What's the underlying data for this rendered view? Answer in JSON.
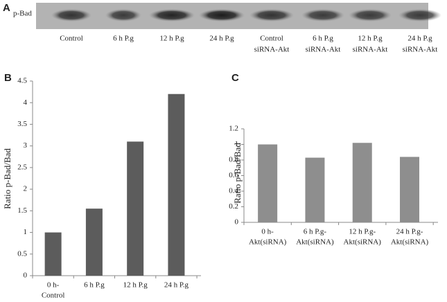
{
  "panel_a": {
    "label": "A",
    "row_label": "p-Bad",
    "lanes": [
      [
        "Control"
      ],
      [
        "6 h P.g"
      ],
      [
        "12 h P.g"
      ],
      [
        "24 h P.g"
      ],
      [
        "Control",
        "siRNA-Akt"
      ],
      [
        "6 h P.g",
        "siRNA-Akt"
      ],
      [
        "12 h P.g",
        "siRNA-Akt"
      ],
      [
        "24 h P.g",
        "siRNA-Akt"
      ]
    ]
  },
  "chart_data": [
    {
      "type": "bar",
      "panel_label": "B",
      "y_label": "Ratio p-Bad/Bad",
      "categories": [
        [
          "0 h-",
          "Control"
        ],
        [
          "6 h P.g"
        ],
        [
          "12 h P.g"
        ],
        [
          "24 h P.g"
        ]
      ],
      "values": [
        1,
        1.55,
        3.1,
        4.2
      ],
      "color": "#5c5c5c",
      "ylim": [
        0,
        4.5
      ],
      "yticks": [
        0,
        0.5,
        1,
        1.5,
        2,
        2.5,
        3,
        3.5,
        4,
        4.5
      ],
      "grid": false
    },
    {
      "type": "bar",
      "panel_label": "C",
      "y_label": "Ratio p-Bad/Bad",
      "categories": [
        [
          "0 h-",
          "Akt(siRNA)"
        ],
        [
          "6 h P.g-",
          "Akt(siRNA)"
        ],
        [
          "12 h P.g-",
          "Akt(siRNA)"
        ],
        [
          "24 h P.g-",
          "Akt(siRNA)"
        ]
      ],
      "values": [
        1,
        0.83,
        1.02,
        0.84
      ],
      "color": "#8e8e8e",
      "ylim": [
        0,
        1.2
      ],
      "yticks": [
        0,
        0.2,
        0.4,
        0.6,
        0.8,
        1,
        1.2
      ],
      "grid": false
    }
  ]
}
